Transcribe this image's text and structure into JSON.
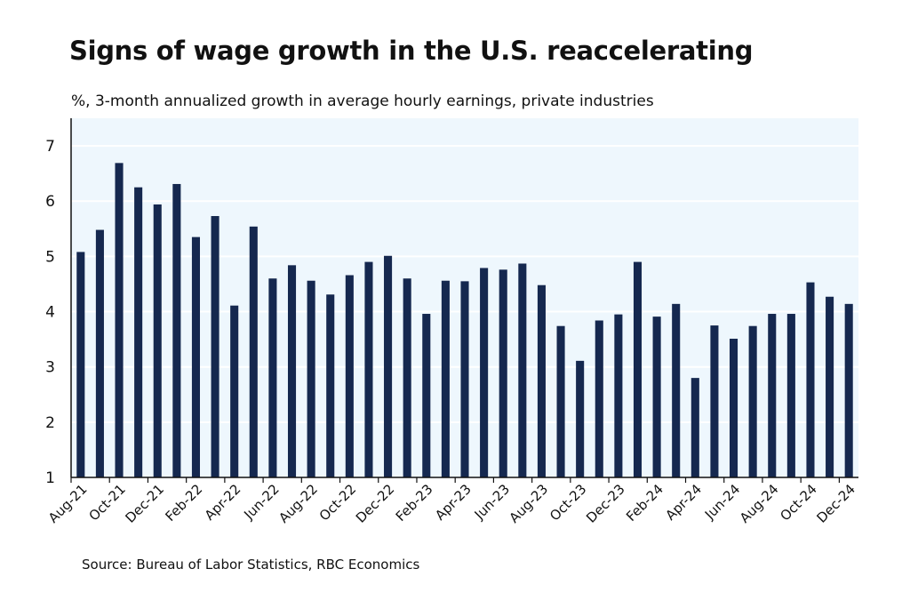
{
  "chart_data": {
    "type": "bar",
    "title": "Signs of wage growth in the U.S. reaccelerating",
    "subtitle": "%, 3-month annualized growth in average hourly earnings, private industries",
    "source": "Source: Bureau of Labor Statistics, RBC Economics",
    "xlabel": "",
    "ylabel": "%",
    "ylim": [
      1,
      7.5
    ],
    "yticks": [
      1,
      2,
      3,
      4,
      5,
      6,
      7
    ],
    "grid": true,
    "bar_color": "#15284f",
    "plot_bg": "#eef7fd",
    "categories": [
      "Aug-21",
      "Sep-21",
      "Oct-21",
      "Nov-21",
      "Dec-21",
      "Jan-22",
      "Feb-22",
      "Mar-22",
      "Apr-22",
      "May-22",
      "Jun-22",
      "Jul-22",
      "Aug-22",
      "Sep-22",
      "Oct-22",
      "Nov-22",
      "Dec-22",
      "Jan-23",
      "Feb-23",
      "Mar-23",
      "Apr-23",
      "May-23",
      "Jun-23",
      "Jul-23",
      "Aug-23",
      "Sep-23",
      "Oct-23",
      "Nov-23",
      "Dec-23",
      "Jan-24",
      "Feb-24",
      "Mar-24",
      "Apr-24",
      "May-24",
      "Jun-24",
      "Jul-24",
      "Aug-24",
      "Sep-24",
      "Oct-24",
      "Nov-24",
      "Dec-24"
    ],
    "tick_labels": [
      "Aug-21",
      "Oct-21",
      "Dec-21",
      "Feb-22",
      "Apr-22",
      "Jun-22",
      "Aug-22",
      "Oct-22",
      "Dec-22",
      "Feb-23",
      "Apr-23",
      "Jun-23",
      "Aug-23",
      "Oct-23",
      "Dec-23",
      "Feb-24",
      "Apr-24",
      "Jun-24",
      "Aug-24",
      "Oct-24",
      "Dec-24"
    ],
    "values": [
      5.08,
      5.48,
      6.69,
      6.25,
      5.94,
      6.31,
      5.35,
      5.73,
      4.11,
      5.54,
      4.6,
      4.84,
      4.56,
      4.31,
      4.66,
      4.9,
      5.01,
      4.6,
      3.96,
      4.56,
      4.55,
      4.79,
      4.76,
      4.87,
      4.48,
      3.74,
      3.11,
      3.84,
      3.95,
      4.9,
      3.91,
      4.14,
      2.8,
      3.75,
      3.51,
      3.74,
      3.96,
      3.96,
      4.53,
      4.27,
      4.14
    ]
  }
}
